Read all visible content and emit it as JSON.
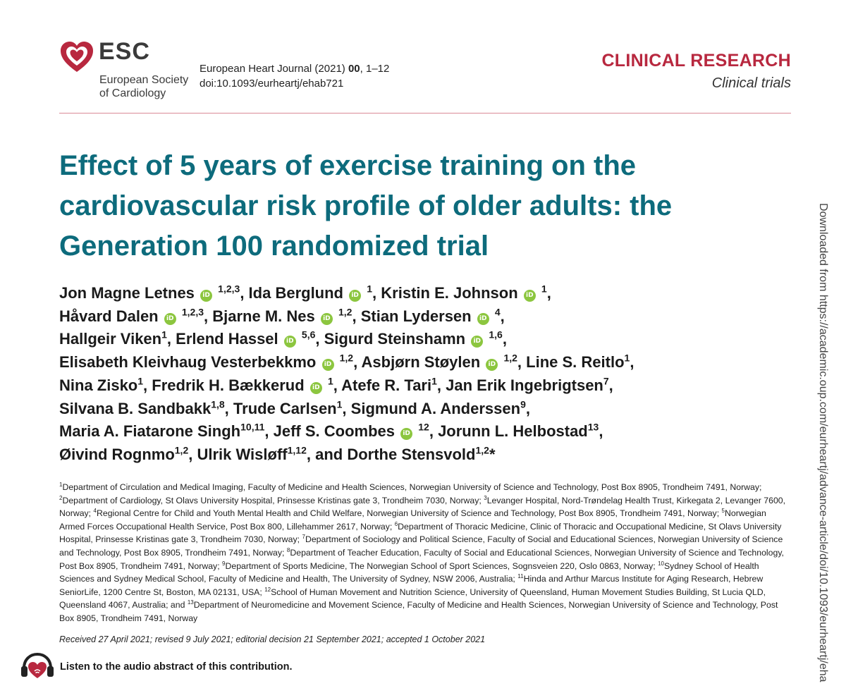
{
  "logo": {
    "abbr": "ESC",
    "line1": "European Society",
    "line2": "of Cardiology",
    "heart_color": "#b8283f"
  },
  "journal": {
    "name": "European Heart Journal (2021)",
    "volume": "00",
    "pages": ", 1–12",
    "doi": "doi:10.1093/eurheartj/ehab721"
  },
  "section": {
    "category": "CLINICAL RESEARCH",
    "subcategory": "Clinical trials"
  },
  "title": "Effect of 5 years of exercise training on the cardiovascular risk profile of older adults: the Generation 100 randomized trial",
  "authors": [
    {
      "name": "Jon Magne Letnes",
      "orcid": true,
      "aff": "1,2,3",
      "sep": ", ",
      "br": false
    },
    {
      "name": "Ida Berglund",
      "orcid": true,
      "aff": "1",
      "sep": ", ",
      "br": false
    },
    {
      "name": "Kristin E. Johnson",
      "orcid": true,
      "aff": "1",
      "sep": ",",
      "br": true
    },
    {
      "name": "Håvard Dalen",
      "orcid": true,
      "aff": "1,2,3",
      "sep": ", ",
      "br": false
    },
    {
      "name": "Bjarne M. Nes",
      "orcid": true,
      "aff": "1,2",
      "sep": ", ",
      "br": false
    },
    {
      "name": "Stian Lydersen",
      "orcid": true,
      "aff": "4",
      "sep": ",",
      "br": true
    },
    {
      "name": "Hallgeir Viken",
      "orcid": false,
      "aff": "1",
      "sep": ", ",
      "br": false
    },
    {
      "name": "Erlend Hassel",
      "orcid": true,
      "aff": "5,6",
      "sep": ", ",
      "br": false
    },
    {
      "name": "Sigurd Steinshamn",
      "orcid": true,
      "aff": "1,6",
      "sep": ",",
      "br": true
    },
    {
      "name": "Elisabeth Kleivhaug Vesterbekkmo",
      "orcid": true,
      "aff": "1,2",
      "sep": ", ",
      "br": false
    },
    {
      "name": "Asbjørn Støylen",
      "orcid": true,
      "aff": "1,2",
      "sep": ", ",
      "br": false
    },
    {
      "name": "Line S. Reitlo",
      "orcid": false,
      "aff": "1",
      "sep": ",",
      "br": true
    },
    {
      "name": "Nina Zisko",
      "orcid": false,
      "aff": "1",
      "sep": ", ",
      "br": false
    },
    {
      "name": "Fredrik H. Bækkerud",
      "orcid": true,
      "aff": "1",
      "sep": ", ",
      "br": false
    },
    {
      "name": "Atefe R. Tari",
      "orcid": false,
      "aff": "1",
      "sep": ", ",
      "br": false
    },
    {
      "name": "Jan Erik Ingebrigtsen",
      "orcid": false,
      "aff": "7",
      "sep": ",",
      "br": true
    },
    {
      "name": "Silvana B. Sandbakk",
      "orcid": false,
      "aff": "1,8",
      "sep": ", ",
      "br": false
    },
    {
      "name": "Trude Carlsen",
      "orcid": false,
      "aff": "1",
      "sep": ", ",
      "br": false
    },
    {
      "name": "Sigmund A. Anderssen",
      "orcid": false,
      "aff": "9",
      "sep": ",",
      "br": true
    },
    {
      "name": "Maria A. Fiatarone Singh",
      "orcid": false,
      "aff": "10,11",
      "sep": ", ",
      "br": false
    },
    {
      "name": "Jeff S. Coombes",
      "orcid": true,
      "aff": "12",
      "sep": ", ",
      "br": false
    },
    {
      "name": "Jorunn L. Helbostad",
      "orcid": false,
      "aff": "13",
      "sep": ",",
      "br": true
    },
    {
      "name": "Øivind Rognmo",
      "orcid": false,
      "aff": "1,2",
      "sep": ", ",
      "br": false
    },
    {
      "name": "Ulrik Wisløff",
      "orcid": false,
      "aff": "1,12",
      "sep": ", and ",
      "br": false
    },
    {
      "name": "Dorthe Stensvold",
      "orcid": false,
      "aff": "1,2",
      "sep": "*",
      "br": false
    }
  ],
  "orcid_label": "iD",
  "affiliations": [
    {
      "n": "1",
      "text": "Department of Circulation and Medical Imaging, Faculty of Medicine and Health Sciences, Norwegian University of Science and Technology, Post Box 8905, Trondheim 7491, Norway; "
    },
    {
      "n": "2",
      "text": "Department of Cardiology, St Olavs University Hospital, Prinsesse Kristinas gate 3, Trondheim 7030, Norway; "
    },
    {
      "n": "3",
      "text": "Levanger Hospital, Nord-Trøndelag Health Trust, Kirkegata 2, Levanger 7600, Norway; "
    },
    {
      "n": "4",
      "text": "Regional Centre for Child and Youth Mental Health and Child Welfare, Norwegian University of Science and Technology, Post Box 8905, Trondheim 7491, Norway; "
    },
    {
      "n": "5",
      "text": "Norwegian Armed Forces Occupational Health Service, Post Box 800, Lillehammer 2617, Norway; "
    },
    {
      "n": "6",
      "text": "Department of Thoracic Medicine, Clinic of Thoracic and Occupational Medicine, St Olavs University Hospital, Prinsesse Kristinas gate 3, Trondheim 7030, Norway; "
    },
    {
      "n": "7",
      "text": "Department of Sociology and Political Science, Faculty of Social and Educational Sciences, Norwegian University of Science and Technology, Post Box 8905, Trondheim 7491, Norway; "
    },
    {
      "n": "8",
      "text": "Department of Teacher Education, Faculty of Social and Educational Sciences, Norwegian University of Science and Technology, Post Box 8905, Trondheim 7491, Norway; "
    },
    {
      "n": "9",
      "text": "Department of Sports Medicine, The Norwegian School of Sport Sciences, Sognsveien 220, Oslo 0863, Norway; "
    },
    {
      "n": "10",
      "text": "Sydney School of Health Sciences and Sydney Medical School, Faculty of Medicine and Health, The University of Sydney, NSW 2006, Australia; "
    },
    {
      "n": "11",
      "text": "Hinda and Arthur Marcus Institute for Aging Research, Hebrew SeniorLife, 1200 Centre St, Boston, MA 02131, USA; "
    },
    {
      "n": "12",
      "text": "School of Human Movement and Nutrition Science, University of Queensland, Human Movement Studies Building, St Lucia QLD, Queensland 4067, Australia; and "
    },
    {
      "n": "13",
      "text": "Department of Neuromedicine and Movement Science, Faculty of Medicine and Health Sciences, Norwegian University of Science and Technology, Post Box 8905, Trondheim 7491, Norway"
    }
  ],
  "dates": "Received 27 April 2021; revised 9 July 2021; editorial decision 21 September 2021; accepted 1 October 2021",
  "audio": {
    "label": "Listen to the audio abstract of this contribution."
  },
  "sidebar": {
    "text": "Downloaded from https://academic.oup.com/eurheartj/advance-article/doi/10.1093/eurheartj/eha"
  },
  "colors": {
    "title": "#0d6b7c",
    "accent": "#b8283f",
    "orcid": "#8cc63f"
  }
}
